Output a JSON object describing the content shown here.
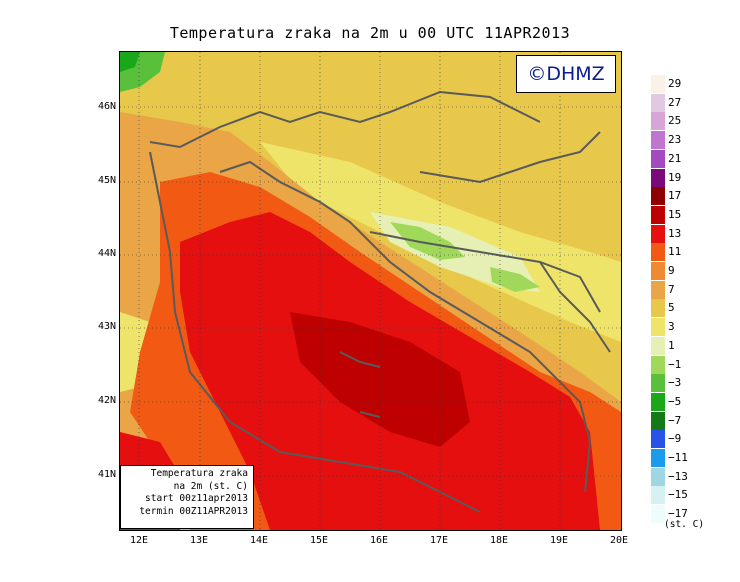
{
  "title": "Temperatura zraka na 2m u 00 UTC 11APR2013",
  "watermark": "©DHMZ",
  "info_box": {
    "line1": "Temperatura zraka",
    "line2": "na 2m (st. C)",
    "line3": "start 00z11apr2013",
    "line4": "termin 00Z11APR2013"
  },
  "axes": {
    "lat_labels": [
      "46N",
      "45N",
      "44N",
      "43N",
      "42N",
      "41N"
    ],
    "lon_labels": [
      "12E",
      "13E",
      "14E",
      "15E",
      "16E",
      "17E",
      "18E",
      "19E",
      "20E"
    ]
  },
  "colorbar": {
    "labels": [
      "29",
      "27",
      "25",
      "23",
      "21",
      "19",
      "17",
      "15",
      "13",
      "11",
      "9",
      "7",
      "5",
      "3",
      "1",
      "−1",
      "−3",
      "−5",
      "−7",
      "−9",
      "−11",
      "−13",
      "−15",
      "−17"
    ],
    "colors": [
      "#fbf1e6",
      "#e3c8e2",
      "#d6a6d9",
      "#c075d0",
      "#a44ac0",
      "#7a0a7c",
      "#8f0000",
      "#bf0000",
      "#e60f0f",
      "#f25a14",
      "#ef8a30",
      "#e9a546",
      "#e8c84a",
      "#efe46a",
      "#e6f0b4",
      "#a0d95a",
      "#58c03a",
      "#1aa81a",
      "#137a17",
      "#2753e6",
      "#1a9cea",
      "#9fd6e4",
      "#d5f1f2",
      "#eefcfb"
    ],
    "units": "(st. C)"
  },
  "palette": {
    "sea_deep": "#bf0000",
    "sea_warm": "#e60f0f",
    "coast_orange": "#f25a14",
    "coast_warm": "#e9a546",
    "land_yellow": "#e8c84a",
    "land_light": "#efe46a",
    "cold_green": "#58c03a",
    "border_gray": "#5a5a5a"
  }
}
